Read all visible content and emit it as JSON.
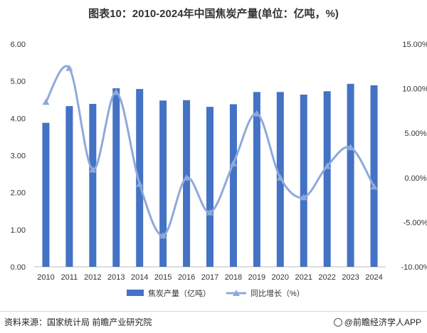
{
  "header": {
    "title": "图表10：2010-2024年中国焦炭产量(单位：亿吨，%)"
  },
  "footer": {
    "source": "资料来源：国家统计局 前瞻产业研究院",
    "brand": "@前瞻经济学人APP"
  },
  "colors": {
    "bar": "#4472C4",
    "line": "#8EA9DB",
    "axis": "#bfbfbf",
    "text": "#333333"
  },
  "chart_data": {
    "type": "bar",
    "categories": [
      "2010",
      "2011",
      "2012",
      "2013",
      "2014",
      "2015",
      "2016",
      "2017",
      "2018",
      "2019",
      "2020",
      "2021",
      "2022",
      "2023",
      "2024"
    ],
    "series": [
      {
        "name": "焦炭产量（亿吨）",
        "type": "bar",
        "axis": "left",
        "values": [
          3.88,
          4.33,
          4.39,
          4.81,
          4.79,
          4.48,
          4.49,
          4.31,
          4.38,
          4.71,
          4.71,
          4.64,
          4.73,
          4.93,
          4.89
        ]
      },
      {
        "name": "同比增长（%）",
        "type": "line",
        "axis": "right",
        "values": [
          8.5,
          12.3,
          0.9,
          9.6,
          -0.7,
          -6.5,
          0.0,
          -3.9,
          1.6,
          7.2,
          0.0,
          -2.2,
          1.3,
          3.4,
          -1.0
        ]
      }
    ],
    "y_left": {
      "ylim": [
        0,
        6
      ],
      "ticks": [
        "0.00",
        "1.00",
        "2.00",
        "3.00",
        "4.00",
        "5.00",
        "6.00"
      ]
    },
    "y_right": {
      "ylim": [
        -10,
        15
      ],
      "ticks": [
        "-10.00%",
        "-5.00%",
        "0.00%",
        "5.00%",
        "10.00%",
        "15.00%"
      ]
    },
    "legend": {
      "position": "bottom",
      "items": [
        "焦炭产量（亿吨）",
        "同比增长（%）"
      ]
    },
    "grid": false
  }
}
